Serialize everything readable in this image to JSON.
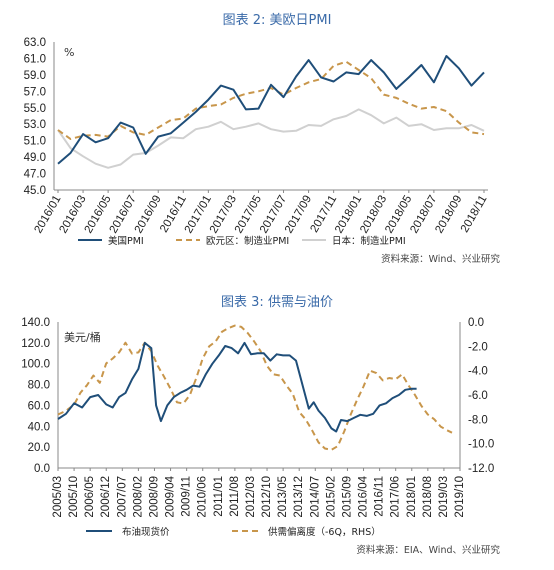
{
  "chart_data": [
    {
      "type": "line",
      "title": "图表 2:  美欧日PMI",
      "ylabel": "%",
      "ylim": [
        45.0,
        63.0
      ],
      "yticks": [
        "63.0",
        "61.0",
        "59.0",
        "57.0",
        "55.0",
        "53.0",
        "51.0",
        "49.0",
        "47.0",
        "45.0"
      ],
      "xticks": [
        "2016/01",
        "2016/03",
        "2016/05",
        "2016/07",
        "2016/09",
        "2016/11",
        "2017/01",
        "2017/03",
        "2017/05",
        "2017/07",
        "2017/09",
        "2017/11",
        "2018/01",
        "2018/03",
        "2018/05",
        "2018/07",
        "2018/09",
        "2018/11"
      ],
      "x": [
        "2016/01",
        "2016/02",
        "2016/03",
        "2016/04",
        "2016/05",
        "2016/06",
        "2016/07",
        "2016/08",
        "2016/09",
        "2016/10",
        "2016/11",
        "2016/12",
        "2017/01",
        "2017/02",
        "2017/03",
        "2017/04",
        "2017/05",
        "2017/06",
        "2017/07",
        "2017/08",
        "2017/09",
        "2017/10",
        "2017/11",
        "2017/12",
        "2018/01",
        "2018/02",
        "2018/03",
        "2018/04",
        "2018/05",
        "2018/06",
        "2018/07",
        "2018/08",
        "2018/09",
        "2018/10",
        "2018/11"
      ],
      "series": [
        {
          "name": "美国PMI",
          "color": "#1f4e79",
          "style": "solid",
          "values": [
            48.2,
            49.5,
            51.8,
            50.8,
            51.3,
            53.2,
            52.6,
            49.4,
            51.5,
            51.9,
            53.2,
            54.5,
            56.0,
            57.7,
            57.2,
            54.8,
            54.9,
            57.8,
            56.3,
            58.8,
            60.8,
            58.7,
            58.2,
            59.3,
            59.1,
            60.8,
            59.3,
            57.3,
            58.7,
            60.2,
            58.1,
            61.3,
            59.8,
            57.7,
            59.3
          ]
        },
        {
          "name": "欧元区：制造业PMI",
          "color": "#c8964b",
          "style": "dash",
          "values": [
            52.3,
            51.2,
            51.6,
            51.7,
            51.5,
            52.8,
            52.0,
            51.7,
            52.6,
            53.5,
            53.7,
            54.9,
            55.2,
            55.4,
            56.2,
            56.7,
            57.0,
            57.4,
            56.6,
            57.4,
            58.1,
            58.5,
            60.1,
            60.6,
            59.6,
            58.6,
            56.6,
            56.2,
            55.5,
            54.9,
            55.1,
            54.6,
            53.2,
            52.0,
            51.8
          ]
        },
        {
          "name": "日本：制造业PMI",
          "color": "#d0d0d0",
          "style": "solid",
          "values": [
            52.3,
            50.1,
            49.1,
            48.2,
            47.7,
            48.1,
            49.3,
            49.5,
            50.4,
            51.4,
            51.3,
            52.4,
            52.7,
            53.3,
            52.4,
            52.7,
            53.1,
            52.4,
            52.1,
            52.2,
            52.9,
            52.8,
            53.6,
            54.0,
            54.8,
            54.1,
            53.1,
            53.8,
            52.8,
            53.0,
            52.3,
            52.5,
            52.5,
            52.9,
            52.2
          ]
        }
      ],
      "legend_position": "bottom",
      "source": "资料来源：Wind、兴业研究"
    },
    {
      "type": "line",
      "title": "图表 3:  供需与油价",
      "ylabel": "美元/桶",
      "ylim": [
        0.0,
        140.0
      ],
      "yticks": [
        "140.0",
        "120.0",
        "100.0",
        "80.0",
        "60.0",
        "40.0",
        "20.0",
        "0.0"
      ],
      "y2lim": [
        -12.0,
        0.0
      ],
      "y2ticks": [
        "0.0",
        "-2.0",
        "-4.0",
        "-6.0",
        "-8.0",
        "-10.0",
        "-12.0"
      ],
      "xticks": [
        "2005/03",
        "2005/10",
        "2006/05",
        "2006/12",
        "2007/07",
        "2008/02",
        "2008/09",
        "2009/04",
        "2009/11",
        "2010/06",
        "2011/01",
        "2011/08",
        "2012/03",
        "2012/10",
        "2013/05",
        "2013/12",
        "2014/07",
        "2015/02",
        "2015/09",
        "2016/04",
        "2016/11",
        "2017/06",
        "2018/01",
        "2018/08",
        "2019/03",
        "2019/10"
      ],
      "series": [
        {
          "name": "布油现货价",
          "color": "#1f4e79",
          "style": "solid",
          "axis": "left",
          "points": [
            [
              0,
              47
            ],
            [
              0.5,
              52
            ],
            [
              1,
              62
            ],
            [
              1.5,
              58
            ],
            [
              2,
              68
            ],
            [
              2.5,
              70
            ],
            [
              3,
              61
            ],
            [
              3.4,
              58
            ],
            [
              3.8,
              68
            ],
            [
              4.2,
              72
            ],
            [
              4.6,
              85
            ],
            [
              5,
              95
            ],
            [
              5.4,
              120
            ],
            [
              5.8,
              115
            ],
            [
              6.1,
              60
            ],
            [
              6.4,
              45
            ],
            [
              6.8,
              60
            ],
            [
              7.2,
              68
            ],
            [
              7.6,
              72
            ],
            [
              8,
              75
            ],
            [
              8.4,
              79
            ],
            [
              8.8,
              78
            ],
            [
              9.2,
              90
            ],
            [
              9.6,
              100
            ],
            [
              10,
              108
            ],
            [
              10.4,
              117
            ],
            [
              10.8,
              115
            ],
            [
              11.2,
              110
            ],
            [
              11.6,
              120
            ],
            [
              12,
              109
            ],
            [
              12.4,
              110
            ],
            [
              12.8,
              110
            ],
            [
              13.2,
              103
            ],
            [
              13.6,
              109
            ],
            [
              14,
              108
            ],
            [
              14.4,
              108
            ],
            [
              14.8,
              103
            ],
            [
              15.2,
              80
            ],
            [
              15.6,
              57
            ],
            [
              15.9,
              63
            ],
            [
              16.2,
              55
            ],
            [
              16.6,
              48
            ],
            [
              17,
              38
            ],
            [
              17.3,
              35
            ],
            [
              17.6,
              46
            ],
            [
              18,
              45
            ],
            [
              18.4,
              48
            ],
            [
              18.8,
              51
            ],
            [
              19.2,
              50
            ],
            [
              19.6,
              52
            ],
            [
              20,
              60
            ],
            [
              20.4,
              62
            ],
            [
              20.8,
              67
            ],
            [
              21.2,
              70
            ],
            [
              21.6,
              75
            ],
            [
              22,
              76
            ],
            [
              22.3,
              76
            ]
          ]
        },
        {
          "name": "供需偏离度（-6Q，RHS）",
          "color": "#c8964b",
          "style": "dash",
          "axis": "right",
          "points": [
            [
              0,
              -7.6
            ],
            [
              0.5,
              -7.3
            ],
            [
              1,
              -6.8
            ],
            [
              1.4,
              -5.8
            ],
            [
              1.8,
              -5.2
            ],
            [
              2.2,
              -4.4
            ],
            [
              2.6,
              -5.0
            ],
            [
              3,
              -3.4
            ],
            [
              3.4,
              -3.0
            ],
            [
              3.8,
              -2.5
            ],
            [
              4.2,
              -1.7
            ],
            [
              4.6,
              -2.6
            ],
            [
              5,
              -2.5
            ],
            [
              5.4,
              -1.7
            ],
            [
              5.8,
              -2.4
            ],
            [
              6.2,
              -3.6
            ],
            [
              6.6,
              -4.5
            ],
            [
              7,
              -5.5
            ],
            [
              7.4,
              -6.6
            ],
            [
              7.8,
              -6.7
            ],
            [
              8.2,
              -6.0
            ],
            [
              8.6,
              -4.6
            ],
            [
              9,
              -3.0
            ],
            [
              9.4,
              -2.0
            ],
            [
              9.8,
              -1.6
            ],
            [
              10.2,
              -0.8
            ],
            [
              10.6,
              -0.5
            ],
            [
              11,
              -0.3
            ],
            [
              11.4,
              -0.4
            ],
            [
              11.8,
              -0.9
            ],
            [
              12.2,
              -1.6
            ],
            [
              12.6,
              -2.4
            ],
            [
              13,
              -3.6
            ],
            [
              13.4,
              -4.3
            ],
            [
              13.8,
              -4.4
            ],
            [
              14.2,
              -5.2
            ],
            [
              14.6,
              -5.9
            ],
            [
              15,
              -7.4
            ],
            [
              15.4,
              -8.0
            ],
            [
              15.8,
              -8.9
            ],
            [
              16.2,
              -9.9
            ],
            [
              16.6,
              -10.4
            ],
            [
              17,
              -10.5
            ],
            [
              17.4,
              -10.2
            ],
            [
              17.8,
              -9.0
            ],
            [
              18.2,
              -7.6
            ],
            [
              18.6,
              -6.4
            ],
            [
              19,
              -5.3
            ],
            [
              19.4,
              -4.0
            ],
            [
              19.8,
              -4.2
            ],
            [
              20.2,
              -4.8
            ],
            [
              20.6,
              -4.6
            ],
            [
              21,
              -4.7
            ],
            [
              21.4,
              -4.3
            ],
            [
              21.8,
              -5.2
            ],
            [
              22.2,
              -6.0
            ],
            [
              22.6,
              -6.9
            ],
            [
              23,
              -7.6
            ],
            [
              23.4,
              -8.0
            ],
            [
              23.8,
              -8.6
            ],
            [
              24.2,
              -8.9
            ],
            [
              24.5,
              -9.1
            ]
          ]
        }
      ],
      "legend_position": "bottom",
      "source": "资料来源：EIA、Wind、兴业研究"
    }
  ]
}
